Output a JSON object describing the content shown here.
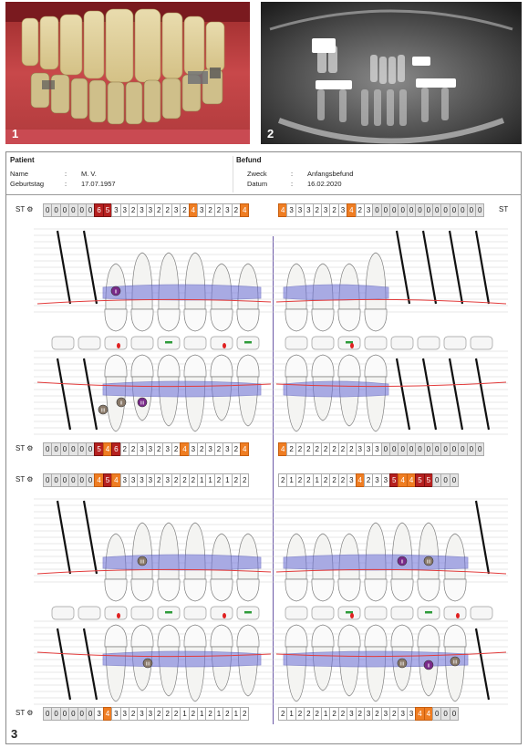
{
  "figures": {
    "fig1_label": "1",
    "fig2_label": "2",
    "fig3_label": "3"
  },
  "header": {
    "patient_title": "Patient",
    "befund_title": "Befund",
    "patient": {
      "name_label": "Name",
      "name_value": "M. V.",
      "dob_label": "Geburtstag",
      "dob_value": "17.07.1957"
    },
    "befund": {
      "purpose_label": "Zweck",
      "purpose_value": "Anfangsbefund",
      "date_label": "Datum",
      "date_value": "16.02.2020"
    },
    "separator": ":"
  },
  "st_label": "ST",
  "colors": {
    "orange": "#ef7d22",
    "dark_red": "#b5201f",
    "gingiva_band": "#6b6fd8",
    "margin_line": "#e23b3b"
  },
  "st_rows": [
    {
      "left": [
        "0",
        "0",
        "0",
        "0",
        "0",
        "0",
        "6",
        "5",
        "3",
        "3",
        "2",
        "3",
        "3",
        "2",
        "2",
        "3",
        "2",
        "4",
        "3",
        "2",
        "2",
        "3",
        "2",
        "4"
      ],
      "left_colors": [
        "g",
        "g",
        "g",
        "g",
        "g",
        "g",
        "r",
        "r",
        "",
        "",
        "",
        "",
        "",
        "",
        "",
        "",
        "",
        "o",
        "",
        "",
        "",
        "",
        "",
        "o"
      ],
      "right": [
        "4",
        "3",
        "3",
        "3",
        "2",
        "3",
        "2",
        "3",
        "4",
        "2",
        "3",
        "0",
        "0",
        "0",
        "0",
        "0",
        "0",
        "0",
        "0",
        "0",
        "0",
        "0",
        "0",
        "0"
      ],
      "right_colors": [
        "o",
        "",
        "",
        "",
        "",
        "",
        "",
        "",
        "o",
        "",
        "",
        "g",
        "g",
        "g",
        "g",
        "g",
        "g",
        "g",
        "g",
        "g",
        "g",
        "g",
        "g",
        "g"
      ]
    },
    {
      "left": [
        "0",
        "0",
        "0",
        "0",
        "0",
        "0",
        "5",
        "4",
        "6",
        "2",
        "2",
        "3",
        "3",
        "2",
        "3",
        "2",
        "4",
        "3",
        "2",
        "3",
        "2",
        "3",
        "2",
        "4"
      ],
      "left_colors": [
        "g",
        "g",
        "g",
        "g",
        "g",
        "g",
        "r",
        "o",
        "r",
        "",
        "",
        "",
        "",
        "",
        "",
        "",
        "o",
        "",
        "",
        "",
        "",
        "",
        "",
        "o"
      ],
      "right": [
        "4",
        "2",
        "2",
        "2",
        "2",
        "2",
        "2",
        "2",
        "2",
        "3",
        "3",
        "3",
        "0",
        "0",
        "0",
        "0",
        "0",
        "0",
        "0",
        "0",
        "0",
        "0",
        "0",
        "0"
      ],
      "right_colors": [
        "o",
        "",
        "",
        "",
        "",
        "",
        "",
        "",
        "",
        "",
        "",
        "",
        "g",
        "g",
        "g",
        "g",
        "g",
        "g",
        "g",
        "g",
        "g",
        "g",
        "g",
        "g"
      ]
    },
    {
      "left": [
        "0",
        "0",
        "0",
        "0",
        "0",
        "0",
        "4",
        "5",
        "4",
        "3",
        "3",
        "3",
        "3",
        "2",
        "3",
        "2",
        "2",
        "2",
        "1",
        "1",
        "2",
        "1",
        "2",
        "2"
      ],
      "left_colors": [
        "g",
        "g",
        "g",
        "g",
        "g",
        "g",
        "o",
        "r",
        "o",
        "",
        "",
        "",
        "",
        "",
        "",
        "",
        "",
        "",
        "",
        "",
        "",
        "",
        "",
        ""
      ],
      "right": [
        "2",
        "1",
        "2",
        "2",
        "1",
        "2",
        "2",
        "2",
        "3",
        "4",
        "2",
        "3",
        "3",
        "5",
        "4",
        "4",
        "5",
        "5",
        "0",
        "0",
        "0"
      ],
      "right_colors": [
        "",
        "",
        "",
        "",
        "",
        "",
        "",
        "",
        "",
        "o",
        "",
        "",
        "",
        "r",
        "o",
        "o",
        "r",
        "r",
        "g",
        "g",
        "g"
      ]
    },
    {
      "left": [
        "0",
        "0",
        "0",
        "0",
        "0",
        "0",
        "3",
        "4",
        "3",
        "3",
        "2",
        "3",
        "3",
        "2",
        "2",
        "2",
        "1",
        "2",
        "1",
        "2",
        "1",
        "2",
        "1",
        "2"
      ],
      "left_colors": [
        "g",
        "g",
        "g",
        "g",
        "g",
        "g",
        "",
        "o",
        "",
        "",
        "",
        "",
        "",
        "",
        "",
        "",
        "",
        "",
        "",
        "",
        "",
        "",
        "",
        ""
      ],
      "right": [
        "2",
        "1",
        "2",
        "2",
        "2",
        "1",
        "2",
        "2",
        "3",
        "2",
        "3",
        "2",
        "3",
        "2",
        "3",
        "3",
        "4",
        "4",
        "0",
        "0",
        "0"
      ],
      "right_colors": [
        "",
        "",
        "",
        "",
        "",
        "",
        "",
        "",
        "",
        "",
        "",
        "",
        "",
        "",
        "",
        "",
        "o",
        "o",
        "g",
        "g",
        "g"
      ]
    }
  ],
  "furcation_markers": [
    "II",
    "II",
    "III",
    "III",
    "III",
    "III",
    "II",
    "III",
    "III",
    "II",
    "III"
  ]
}
